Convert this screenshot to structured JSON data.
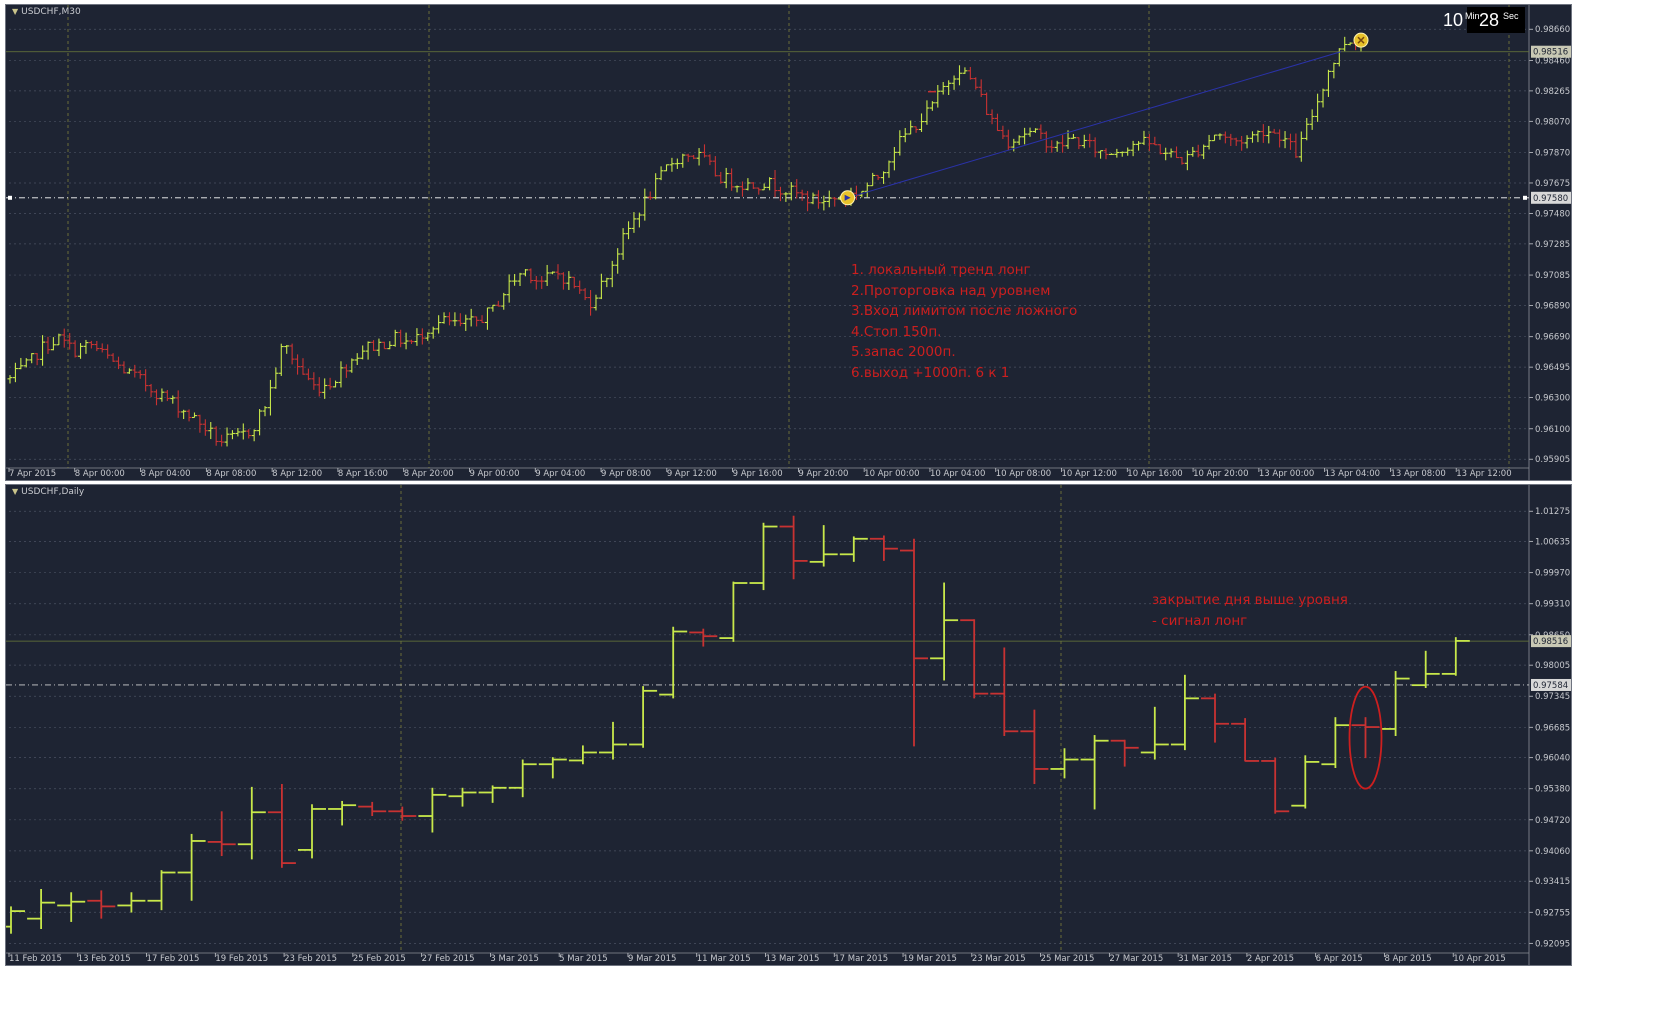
{
  "colors": {
    "background": "#1e2433",
    "bull": "#c8e84a",
    "bear": "#c83232",
    "grid": "#4a5062",
    "vgrid": "#8a8a3a",
    "text": "#c7c9ce",
    "annotation": "#cc1f1f",
    "trendline": "#2a32a8"
  },
  "timer": {
    "minutes": "10",
    "min_label": "Min",
    "seconds": "28",
    "sec_label": "Sec"
  },
  "top_panel": {
    "title": "USDCHF,M30",
    "annotation_lines": [
      "1. локальный тренд лонг",
      "2.Проторговка над уровнем",
      "3.Вход лимитом после ложного",
      "4.Стоп 150п.",
      "5.запас 2000п.",
      "6.выход +1000п. 6 к 1"
    ]
  },
  "bottom_panel": {
    "title": "USDCHF,Daily",
    "annotation_lines": [
      "закрытие дня выше уровня",
      "- сигнал лонг"
    ]
  },
  "chart_data": [
    {
      "type": "ohlc",
      "title": "USDCHF,M30",
      "ylim": [
        0.959,
        0.987
      ],
      "y_ticks": [
        "0.98660",
        "0.98460",
        "0.98265",
        "0.98070",
        "0.97870",
        "0.97675",
        "0.97480",
        "0.97285",
        "0.97085",
        "0.96890",
        "0.96690",
        "0.96495",
        "0.96300",
        "0.96100",
        "0.95905"
      ],
      "x_ticks": [
        "7 Apr 2015",
        "8 Apr 00:00",
        "8 Apr 04:00",
        "8 Apr 08:00",
        "8 Apr 12:00",
        "8 Apr 16:00",
        "8 Apr 20:00",
        "9 Apr 00:00",
        "9 Apr 04:00",
        "9 Apr 08:00",
        "9 Apr 12:00",
        "9 Apr 16:00",
        "9 Apr 20:00",
        "10 Apr 00:00",
        "10 Apr 04:00",
        "10 Apr 08:00",
        "10 Apr 12:00",
        "10 Apr 16:00",
        "10 Apr 20:00",
        "13 Apr 00:00",
        "13 Apr 04:00",
        "13 Apr 08:00",
        "13 Apr 12:00"
      ],
      "current_price": "0.98516",
      "level": "0.97580",
      "grid": true,
      "waypoints": [
        0.9642,
        0.965,
        0.9662,
        0.9668,
        0.966,
        0.9664,
        0.9656,
        0.9648,
        0.9642,
        0.9634,
        0.9628,
        0.962,
        0.9612,
        0.9602,
        0.9604,
        0.9609,
        0.9628,
        0.9665,
        0.9648,
        0.9636,
        0.964,
        0.9652,
        0.9662,
        0.9664,
        0.9668,
        0.9665,
        0.9675,
        0.9679,
        0.9676,
        0.9679,
        0.9686,
        0.9702,
        0.9712,
        0.9704,
        0.971,
        0.9703,
        0.969,
        0.9706,
        0.9729,
        0.9748,
        0.9764,
        0.978,
        0.9786,
        0.9784,
        0.9772,
        0.9768,
        0.9766,
        0.9768,
        0.9764,
        0.976,
        0.9756,
        0.9757,
        0.9759,
        0.9763,
        0.9772,
        0.979,
        0.9802,
        0.9812,
        0.9828,
        0.9842,
        0.983,
        0.9808,
        0.9794,
        0.98,
        0.9798,
        0.979,
        0.9796,
        0.9792,
        0.9786,
        0.9789,
        0.9794,
        0.9792,
        0.9786,
        0.9782,
        0.979,
        0.98,
        0.9794,
        0.9796,
        0.9802,
        0.9798,
        0.9786,
        0.9812,
        0.984,
        0.9858,
        0.986
      ],
      "trendlines": [
        {
          "from_bar": 0.62,
          "from_price": 0.9758,
          "to_bar": 0.985,
          "to_price": 0.98516
        }
      ]
    },
    {
      "type": "ohlc",
      "title": "USDCHF,Daily",
      "ylim": [
        0.9206,
        1.0145
      ],
      "y_ticks": [
        "1.01275",
        "1.00635",
        "0.99970",
        "0.99310",
        "0.98650",
        "0.98005",
        "0.97345",
        "0.96685",
        "0.96040",
        "0.95380",
        "0.94720",
        "0.94060",
        "0.93415",
        "0.92755",
        "0.92095"
      ],
      "x_ticks": [
        "11 Feb 2015",
        "13 Feb 2015",
        "17 Feb 2015",
        "19 Feb 2015",
        "23 Feb 2015",
        "25 Feb 2015",
        "27 Feb 2015",
        "3 Mar 2015",
        "5 Mar 2015",
        "9 Mar 2015",
        "11 Mar 2015",
        "13 Mar 2015",
        "17 Mar 2015",
        "19 Mar 2015",
        "23 Mar 2015",
        "25 Mar 2015",
        "27 Mar 2015",
        "31 Mar 2015",
        "2 Apr 2015",
        "6 Apr 2015",
        "8 Apr 2015",
        "10 Apr 2015"
      ],
      "current_price": "0.98516",
      "level": "0.97584",
      "grid": true,
      "bars": [
        [
          0.9245,
          0.9288,
          0.923,
          0.9278
        ],
        [
          0.9262,
          0.9325,
          0.924,
          0.9296
        ],
        [
          0.929,
          0.9318,
          0.9255,
          0.9298
        ],
        [
          0.93,
          0.9322,
          0.9262,
          0.9288
        ],
        [
          0.929,
          0.9318,
          0.9275,
          0.93
        ],
        [
          0.93,
          0.9365,
          0.928,
          0.936
        ],
        [
          0.936,
          0.9442,
          0.93,
          0.9427
        ],
        [
          0.9425,
          0.949,
          0.9395,
          0.942
        ],
        [
          0.942,
          0.9542,
          0.9388,
          0.9488
        ],
        [
          0.9488,
          0.9548,
          0.937,
          0.938
        ],
        [
          0.9408,
          0.9505,
          0.939,
          0.9495
        ],
        [
          0.9495,
          0.9512,
          0.946,
          0.9503
        ],
        [
          0.95,
          0.951,
          0.948,
          0.949
        ],
        [
          0.949,
          0.95,
          0.947,
          0.948
        ],
        [
          0.948,
          0.954,
          0.9445,
          0.9525
        ],
        [
          0.9522,
          0.954,
          0.95,
          0.953
        ],
        [
          0.953,
          0.9545,
          0.9508,
          0.954
        ],
        [
          0.954,
          0.96,
          0.952,
          0.959
        ],
        [
          0.959,
          0.9605,
          0.956,
          0.96
        ],
        [
          0.9598,
          0.963,
          0.959,
          0.9615
        ],
        [
          0.9615,
          0.968,
          0.96,
          0.9632
        ],
        [
          0.9632,
          0.9756,
          0.9625,
          0.9746
        ],
        [
          0.9738,
          0.9882,
          0.973,
          0.9872
        ],
        [
          0.987,
          0.9878,
          0.984,
          0.9862
        ],
        [
          0.9858,
          0.9978,
          0.985,
          0.9975
        ],
        [
          0.9975,
          1.0103,
          0.996,
          1.0095
        ],
        [
          1.0095,
          1.0118,
          0.9983,
          1.0022
        ],
        [
          1.002,
          1.0098,
          1.001,
          1.0036
        ],
        [
          1.0036,
          1.0074,
          1.002,
          1.0069
        ],
        [
          1.0069,
          1.0076,
          1.0022,
          1.0048
        ],
        [
          1.0044,
          1.0069,
          0.9628,
          0.9815
        ],
        [
          0.9815,
          0.9976,
          0.9768,
          0.9896
        ],
        [
          0.9896,
          0.9898,
          0.973,
          0.974
        ],
        [
          0.974,
          0.9838,
          0.965,
          0.966
        ],
        [
          0.966,
          0.9706,
          0.9548,
          0.958
        ],
        [
          0.958,
          0.9624,
          0.956,
          0.96
        ],
        [
          0.96,
          0.9652,
          0.9494,
          0.964
        ],
        [
          0.964,
          0.9642,
          0.9585,
          0.9625
        ],
        [
          0.9615,
          0.9712,
          0.96,
          0.9632
        ],
        [
          0.9632,
          0.978,
          0.962,
          0.973
        ],
        [
          0.973,
          0.974,
          0.9636,
          0.9676
        ],
        [
          0.9676,
          0.9688,
          0.9596,
          0.9597
        ],
        [
          0.9597,
          0.9604,
          0.9485,
          0.949
        ],
        [
          0.9502,
          0.9609,
          0.9496,
          0.9595
        ],
        [
          0.959,
          0.969,
          0.9582,
          0.9673
        ],
        [
          0.9673,
          0.969,
          0.9603,
          0.9669
        ],
        [
          0.9665,
          0.9788,
          0.965,
          0.9772
        ],
        [
          0.9758,
          0.9831,
          0.9752,
          0.9782
        ],
        [
          0.9782,
          0.986,
          0.9778,
          0.9852
        ]
      ],
      "highlight_bar": 45
    }
  ]
}
